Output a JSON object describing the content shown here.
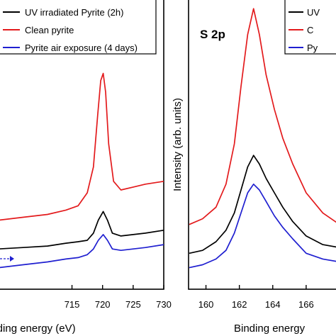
{
  "chart_data": [
    {
      "type": "line",
      "panel": "left",
      "title": "",
      "xlabel": "Binding energy (eV)",
      "ylabel": "",
      "xlim": [
        703,
        730
      ],
      "ylim": [
        0,
        1
      ],
      "x_ticks": [
        715,
        720,
        725,
        730
      ],
      "grid": false,
      "legend": "top-right",
      "legend_entries": [
        {
          "name": "UV irradiated Pyrite (2h)",
          "color": "#000000"
        },
        {
          "name": "Clean pyrite",
          "color": "#e31a1c"
        },
        {
          "name": "Pyrite air exposure (4 days)",
          "color": "#1f1fd0"
        }
      ],
      "series": [
        {
          "name": "Clean pyrite",
          "color": "#e31a1c",
          "x": [
            703,
            707,
            711,
            714,
            716,
            717.5,
            718.5,
            719.2,
            719.7,
            720.1,
            720.5,
            721,
            721.8,
            723,
            725,
            727,
            730
          ],
          "y": [
            0.235,
            0.245,
            0.255,
            0.27,
            0.285,
            0.33,
            0.42,
            0.6,
            0.72,
            0.745,
            0.68,
            0.5,
            0.37,
            0.34,
            0.35,
            0.36,
            0.37
          ]
        },
        {
          "name": "UV irradiated Pyrite (2h)",
          "color": "#000000",
          "x": [
            703,
            707,
            711,
            714,
            716,
            717.5,
            718.5,
            719.3,
            720.1,
            720.8,
            721.6,
            723,
            725,
            727,
            730
          ],
          "y": [
            0.135,
            0.14,
            0.145,
            0.155,
            0.16,
            0.165,
            0.19,
            0.235,
            0.265,
            0.235,
            0.19,
            0.18,
            0.185,
            0.19,
            0.2
          ]
        },
        {
          "name": "Pyrite air exposure (4 days)",
          "color": "#1f1fd0",
          "x": [
            703,
            707,
            711,
            714,
            716,
            717.5,
            718.5,
            719.3,
            720.1,
            720.8,
            721.6,
            723,
            725,
            727,
            730
          ],
          "y": [
            0.07,
            0.08,
            0.09,
            0.1,
            0.105,
            0.115,
            0.135,
            0.165,
            0.185,
            0.165,
            0.135,
            0.13,
            0.135,
            0.14,
            0.15
          ]
        }
      ]
    },
    {
      "type": "line",
      "panel": "right",
      "title": "S 2p",
      "xlabel": "Binding energy",
      "ylabel": "Intensity (arb. units)",
      "xlim": [
        159,
        168
      ],
      "ylim": [
        0,
        1
      ],
      "x_ticks": [
        160,
        162,
        164,
        166
      ],
      "grid": false,
      "legend": "top-right",
      "legend_entries": [
        {
          "name": "UV",
          "color": "#000000"
        },
        {
          "name": "C",
          "color": "#e31a1c"
        },
        {
          "name": "Py",
          "color": "#1f1fd0"
        }
      ],
      "series": [
        {
          "name": "C",
          "color": "#e31a1c",
          "x": [
            159,
            159.8,
            160.6,
            161.2,
            161.7,
            162.1,
            162.5,
            162.85,
            163.2,
            163.6,
            164.1,
            164.6,
            165.2,
            166,
            167,
            168
          ],
          "y": [
            0.22,
            0.24,
            0.28,
            0.36,
            0.5,
            0.7,
            0.88,
            0.97,
            0.88,
            0.74,
            0.62,
            0.52,
            0.43,
            0.33,
            0.26,
            0.22
          ]
        },
        {
          "name": "UV",
          "color": "#000000",
          "x": [
            159,
            159.8,
            160.6,
            161.2,
            161.7,
            162.1,
            162.5,
            162.85,
            163.2,
            163.6,
            164.1,
            164.6,
            165.2,
            166,
            167,
            168
          ],
          "y": [
            0.12,
            0.13,
            0.16,
            0.2,
            0.26,
            0.34,
            0.42,
            0.46,
            0.43,
            0.38,
            0.33,
            0.28,
            0.23,
            0.18,
            0.15,
            0.14
          ]
        },
        {
          "name": "Py",
          "color": "#1f1fd0",
          "x": [
            159,
            159.8,
            160.6,
            161.2,
            161.7,
            162.1,
            162.5,
            162.85,
            163.2,
            163.6,
            164.1,
            164.6,
            165.2,
            166,
            167,
            168
          ],
          "y": [
            0.07,
            0.08,
            0.1,
            0.13,
            0.19,
            0.26,
            0.33,
            0.36,
            0.34,
            0.3,
            0.25,
            0.21,
            0.17,
            0.12,
            0.1,
            0.09
          ]
        }
      ]
    }
  ]
}
